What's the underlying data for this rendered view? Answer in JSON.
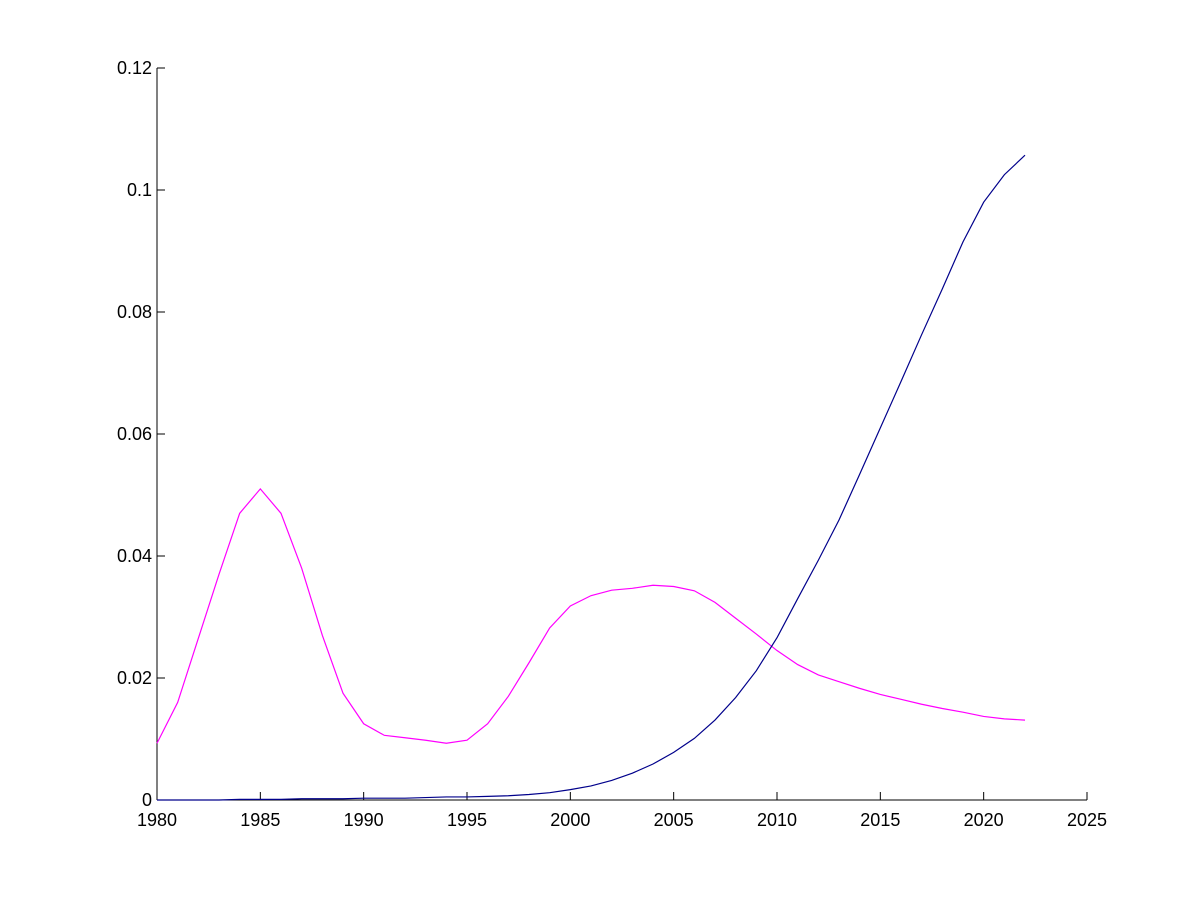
{
  "chart_data": {
    "type": "line",
    "title": "",
    "xlabel": "",
    "ylabel": "",
    "xlim": [
      1980,
      2025
    ],
    "ylim": [
      0,
      0.12
    ],
    "xticks": [
      1980,
      1985,
      1990,
      1995,
      2000,
      2005,
      2010,
      2015,
      2020,
      2025
    ],
    "xtick_labels": [
      "1980",
      "1985",
      "1990",
      "1995",
      "2000",
      "2005",
      "2010",
      "2015",
      "2020",
      "2025"
    ],
    "yticks": [
      0,
      0.02,
      0.04,
      0.06,
      0.08,
      0.1,
      0.12
    ],
    "ytick_labels": [
      "0",
      "0.02",
      "0.04",
      "0.06",
      "0.08",
      "0.1",
      "0.12"
    ],
    "grid": false,
    "legend": "none",
    "x": [
      1980,
      1981,
      1982,
      1983,
      1984,
      1985,
      1986,
      1987,
      1988,
      1989,
      1990,
      1991,
      1992,
      1993,
      1994,
      1995,
      1996,
      1997,
      1998,
      1999,
      2000,
      2001,
      2002,
      2003,
      2004,
      2005,
      2006,
      2007,
      2008,
      2009,
      2010,
      2011,
      2012,
      2013,
      2014,
      2015,
      2016,
      2017,
      2018,
      2019,
      2020,
      2021,
      2022
    ],
    "series": [
      {
        "color": "#ff00ff",
        "values": [
          0.0093,
          0.016,
          0.0265,
          0.037,
          0.047,
          0.051,
          0.047,
          0.038,
          0.027,
          0.0175,
          0.0125,
          0.0106,
          0.0102,
          0.0098,
          0.0093,
          0.0098,
          0.0125,
          0.017,
          0.0225,
          0.0282,
          0.0318,
          0.0335,
          0.0344,
          0.0347,
          0.0352,
          0.035,
          0.0343,
          0.0324,
          0.0298,
          0.0272,
          0.0245,
          0.0222,
          0.0205,
          0.0194,
          0.0183,
          0.0173,
          0.0165,
          0.0157,
          0.015,
          0.0144,
          0.0137,
          0.0133,
          0.0131
        ]
      },
      {
        "color": "#00008b",
        "values": [
          0.0,
          0.0,
          0.0,
          0.0,
          0.0001,
          0.0001,
          0.0001,
          0.0002,
          0.0002,
          0.0002,
          0.0003,
          0.0003,
          0.0003,
          0.0004,
          0.0005,
          0.0005,
          0.0006,
          0.0007,
          0.0009,
          0.0012,
          0.0017,
          0.0023,
          0.0032,
          0.0044,
          0.0059,
          0.0078,
          0.0101,
          0.0131,
          0.0168,
          0.0212,
          0.0266,
          0.033,
          0.0393,
          0.0459,
          0.0534,
          0.061,
          0.0686,
          0.0763,
          0.0838,
          0.0915,
          0.098,
          0.1025,
          0.1057
        ]
      }
    ]
  }
}
